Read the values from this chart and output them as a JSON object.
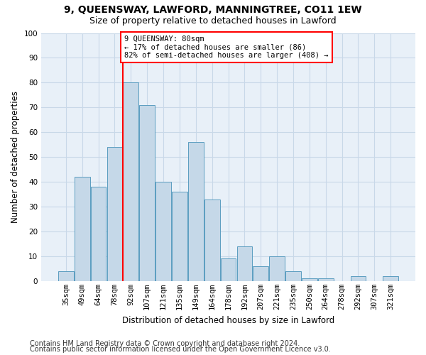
{
  "title_line1": "9, QUEENSWAY, LAWFORD, MANNINGTREE, CO11 1EW",
  "title_line2": "Size of property relative to detached houses in Lawford",
  "xlabel": "Distribution of detached houses by size in Lawford",
  "ylabel": "Number of detached properties",
  "categories": [
    "35sqm",
    "49sqm",
    "64sqm",
    "78sqm",
    "92sqm",
    "107sqm",
    "121sqm",
    "135sqm",
    "149sqm",
    "164sqm",
    "178sqm",
    "192sqm",
    "207sqm",
    "221sqm",
    "235sqm",
    "250sqm",
    "264sqm",
    "278sqm",
    "292sqm",
    "307sqm",
    "321sqm"
  ],
  "values": [
    4,
    42,
    38,
    54,
    80,
    71,
    40,
    36,
    56,
    33,
    9,
    14,
    6,
    10,
    4,
    1,
    1,
    0,
    2,
    0,
    2
  ],
  "bar_color": "#c5d8e8",
  "bar_edge_color": "#5b9dc0",
  "grid_color": "#c8d8e8",
  "background_color": "#e8f0f8",
  "vline_x": 3.5,
  "vline_color": "red",
  "annotation_text": "9 QUEENSWAY: 80sqm\n← 17% of detached houses are smaller (86)\n82% of semi-detached houses are larger (408) →",
  "annotation_box_color": "white",
  "annotation_box_edge": "red",
  "footnote1": "Contains HM Land Registry data © Crown copyright and database right 2024.",
  "footnote2": "Contains public sector information licensed under the Open Government Licence v3.0.",
  "ylim": [
    0,
    100
  ],
  "title_fontsize": 10,
  "subtitle_fontsize": 9,
  "axis_label_fontsize": 8.5,
  "tick_fontsize": 7.5,
  "footnote_fontsize": 7
}
